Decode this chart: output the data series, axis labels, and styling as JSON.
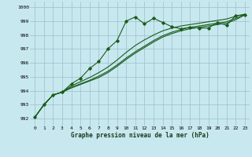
{
  "title": "Graphe pression niveau de la mer (hPa)",
  "bg_color": "#c8e8f0",
  "grid_color": "#9bbfc8",
  "line_color": "#1a5c1a",
  "x_labels": [
    "0",
    "1",
    "2",
    "3",
    "4",
    "5",
    "6",
    "7",
    "8",
    "9",
    "10",
    "11",
    "12",
    "13",
    "14",
    "15",
    "16",
    "17",
    "18",
    "19",
    "20",
    "21",
    "22",
    "23"
  ],
  "ylim": [
    991.5,
    1000.4
  ],
  "yticks": [
    992,
    993,
    994,
    995,
    996,
    997,
    998,
    999,
    1000
  ],
  "series_main": [
    992.1,
    993.0,
    993.7,
    993.9,
    994.5,
    994.9,
    995.6,
    996.1,
    997.0,
    997.6,
    999.0,
    999.3,
    998.8,
    999.2,
    998.9,
    998.6,
    998.45,
    998.55,
    998.5,
    998.5,
    998.9,
    998.7,
    999.4,
    999.45
  ],
  "series_smooth": [
    [
      992.1,
      993.0,
      993.7,
      993.9,
      994.2,
      994.45,
      994.7,
      994.95,
      995.3,
      995.75,
      996.25,
      996.7,
      997.1,
      997.5,
      997.85,
      998.1,
      998.3,
      998.45,
      998.55,
      998.65,
      998.75,
      998.85,
      999.1,
      999.45
    ],
    [
      992.1,
      993.0,
      993.7,
      993.9,
      994.25,
      994.5,
      994.75,
      995.05,
      995.4,
      995.85,
      996.35,
      996.8,
      997.2,
      997.6,
      997.95,
      998.2,
      998.4,
      998.55,
      998.65,
      998.75,
      998.85,
      998.95,
      999.2,
      999.45
    ],
    [
      992.1,
      993.0,
      993.7,
      993.9,
      994.35,
      994.65,
      994.95,
      995.3,
      995.7,
      996.2,
      996.75,
      997.25,
      997.65,
      998.0,
      998.3,
      998.5,
      998.65,
      998.75,
      998.85,
      998.95,
      999.05,
      999.15,
      999.35,
      999.5
    ]
  ],
  "linewidth": 0.8,
  "marker_style": "D",
  "marker_size": 1.8,
  "xlabel_fontsize": 5.5,
  "tick_fontsize": 4.5
}
